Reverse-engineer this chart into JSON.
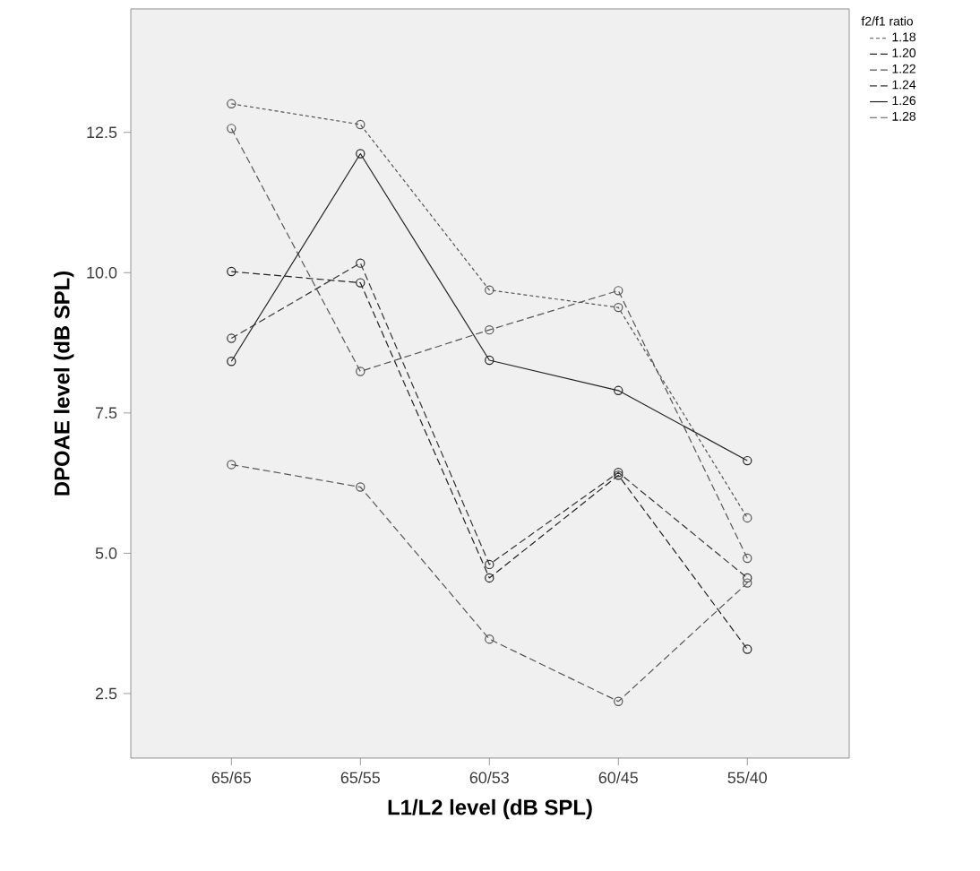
{
  "chart_data": {
    "type": "line",
    "xlabel": "L1/L2 level (dB SPL)",
    "ylabel": "DPOAE level (dB SPL)",
    "legend_title": "f2/f1 ratio",
    "categories": [
      "65/65",
      "65/55",
      "60/53",
      "60/45",
      "55/40"
    ],
    "series": [
      {
        "name": "1.18",
        "color": "#555555",
        "line_style": "dotted",
        "values": [
          13.01,
          12.64,
          9.69,
          9.38,
          5.63
        ]
      },
      {
        "name": "1.20",
        "color": "#222222",
        "line_style": "dashed",
        "values": [
          10.02,
          9.82,
          4.56,
          6.39,
          3.29
        ]
      },
      {
        "name": "1.22",
        "color": "#555555",
        "line_style": "dashed",
        "values": [
          12.57,
          8.24,
          8.98,
          9.68,
          4.91
        ]
      },
      {
        "name": "1.24",
        "color": "#333333",
        "line_style": "dashed",
        "values": [
          8.83,
          10.17,
          4.8,
          6.44,
          4.56
        ]
      },
      {
        "name": "1.26",
        "color": "#222222",
        "line_style": "solid",
        "values": [
          8.42,
          12.12,
          8.44,
          7.9,
          6.65
        ]
      },
      {
        "name": "1.28",
        "color": "#555555",
        "line_style": "dashed",
        "values": [
          6.58,
          6.18,
          3.47,
          2.36,
          4.47
        ]
      }
    ],
    "ylim": [
      1.35,
      14.7
    ],
    "yticks": [
      {
        "value": 2.5,
        "label": "2.5"
      },
      {
        "value": 5,
        "label": "5.0"
      },
      {
        "value": 7.5,
        "label": "7.5"
      },
      {
        "value": 10,
        "label": "10.0"
      },
      {
        "value": 12.5,
        "label": "12.5"
      }
    ],
    "marker": "circle",
    "grid": false,
    "legend": "top right"
  }
}
